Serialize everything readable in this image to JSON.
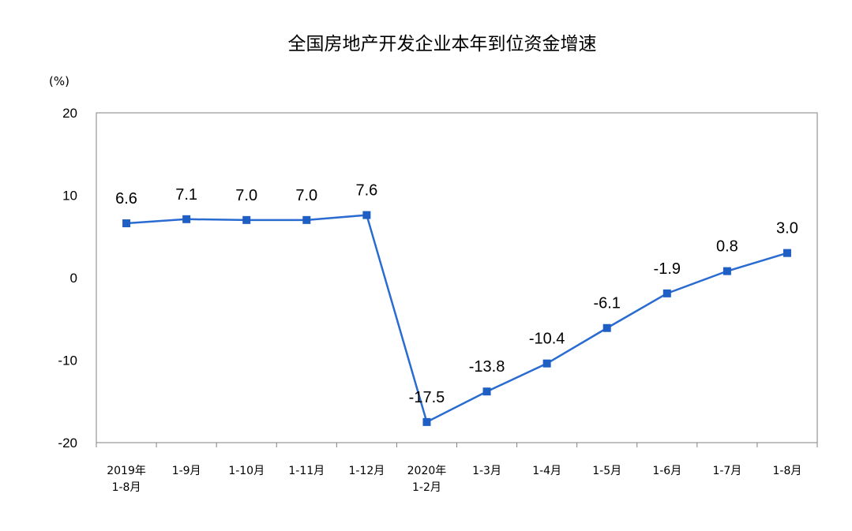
{
  "chart_data": {
    "type": "line",
    "title": "全国房地产开发企业本年到位资金增速",
    "unit_label": "(%)",
    "ylim": [
      -20,
      20
    ],
    "yticks": [
      "20",
      "10",
      "0",
      "-10",
      "-20"
    ],
    "categories": [
      [
        "2019年",
        "1-8月"
      ],
      [
        "1-9月"
      ],
      [
        "1-10月"
      ],
      [
        "1-11月"
      ],
      [
        "1-12月"
      ],
      [
        "2020年",
        "1-2月"
      ],
      [
        "1-3月"
      ],
      [
        "1-4月"
      ],
      [
        "1-5月"
      ],
      [
        "1-6月"
      ],
      [
        "1-7月"
      ],
      [
        "1-8月"
      ]
    ],
    "series": [
      {
        "values": [
          6.6,
          7.1,
          7.0,
          7.0,
          7.6,
          -17.5,
          -13.8,
          -10.4,
          -6.1,
          -1.9,
          0.8,
          3.0
        ],
        "labels": [
          "6.6",
          "7.1",
          "7.0",
          "7.0",
          "7.6",
          "-17.5",
          "-13.8",
          "-10.4",
          "-6.1",
          "-1.9",
          "0.8",
          "3.0"
        ]
      }
    ],
    "colors": {
      "line": "#2a6bd1",
      "marker": "#1f5fc4",
      "axis": "#808080"
    },
    "grid": false
  }
}
